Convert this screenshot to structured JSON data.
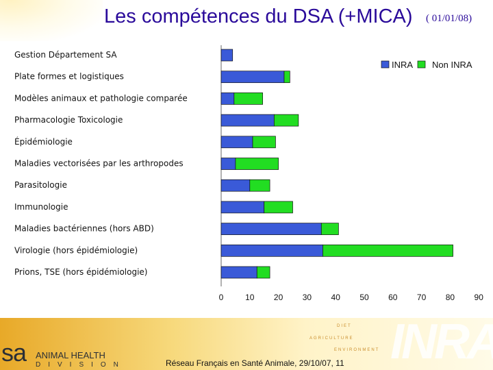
{
  "slide": {
    "title": "Les compétences du DSA (+MICA)",
    "date": "( 01/01/08)",
    "caption": "Réseau Français en Santé Animale, 29/10/07,  11",
    "logo_sa": "sa",
    "logo_animal_health": "ANIMAL HEALTH",
    "logo_division": "DIVISION",
    "inra_logo": "INRA",
    "slogan": [
      "DIET",
      "AGRICULTURE",
      "ENVIRONMENT"
    ]
  },
  "colors": {
    "inra": "#3a5ad8",
    "non_inra": "#22dd22",
    "title": "#2a0a9a"
  },
  "chart_data": {
    "type": "bar",
    "orientation": "horizontal",
    "stacked": true,
    "title": "",
    "xlabel": "",
    "ylabel": "",
    "xlim": [
      0,
      90
    ],
    "xticks": [
      "0",
      "10",
      "20",
      "30",
      "40",
      "50",
      "60",
      "70",
      "80",
      "90"
    ],
    "legend_position": "top-right",
    "categories": [
      "Gestion Département SA",
      "Plate formes et logistiques",
      "Modèles animaux et pathologie comparée",
      "Pharmacologie Toxicologie",
      "Épidémiologie",
      "Maladies vectorisées par les arthropodes",
      "Parasitologie",
      "Immunologie",
      "Maladies bactériennes (hors ABD)",
      "Virologie (hors épidémiologie)",
      "Prions, TSE (hors épidémiologie)"
    ],
    "series": [
      {
        "name": "INRA",
        "values": [
          4,
          22,
          4.5,
          18.5,
          11,
          5,
          10,
          15,
          35,
          35.5,
          12.5
        ]
      },
      {
        "name": "Non INRA",
        "values": [
          0,
          2,
          10,
          8.5,
          8,
          15,
          7,
          10,
          6,
          45.5,
          4.5
        ]
      }
    ]
  }
}
